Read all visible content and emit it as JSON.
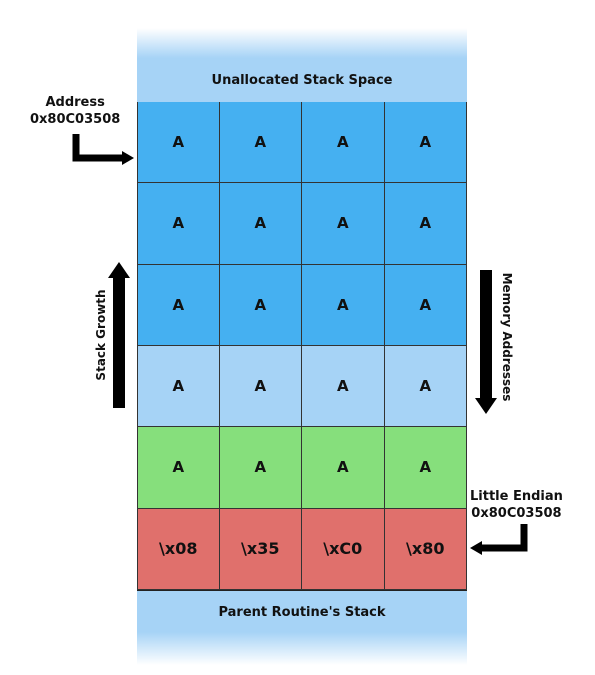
{
  "diagram": {
    "top_band": "Unallocated Stack Space",
    "bottom_band": "Parent Routine's Stack",
    "rows": [
      {
        "cells": [
          "A",
          "A",
          "A",
          "A"
        ],
        "color": "#45b0f1"
      },
      {
        "cells": [
          "A",
          "A",
          "A",
          "A"
        ],
        "color": "#45b0f1"
      },
      {
        "cells": [
          "A",
          "A",
          "A",
          "A"
        ],
        "color": "#45b0f1"
      },
      {
        "cells": [
          "A",
          "A",
          "A",
          "A"
        ],
        "color": "#a6d3f6"
      },
      {
        "cells": [
          "A",
          "A",
          "A",
          "A"
        ],
        "color": "#86df7c"
      },
      {
        "cells": [
          "\\x08",
          "\\x35",
          "\\xC0",
          "\\x80"
        ],
        "color": "#e0706c"
      }
    ],
    "address_label": {
      "line1": "Address",
      "line2": "0x80C03508"
    },
    "endian_label": {
      "line1": "Little Endian",
      "line2": "0x80C03508"
    },
    "stack_growth_label": "Stack Growth",
    "memory_addresses_label": "Memory Addresses",
    "colors": {
      "band": "#a6d3f6",
      "arrow": "#000000"
    }
  }
}
